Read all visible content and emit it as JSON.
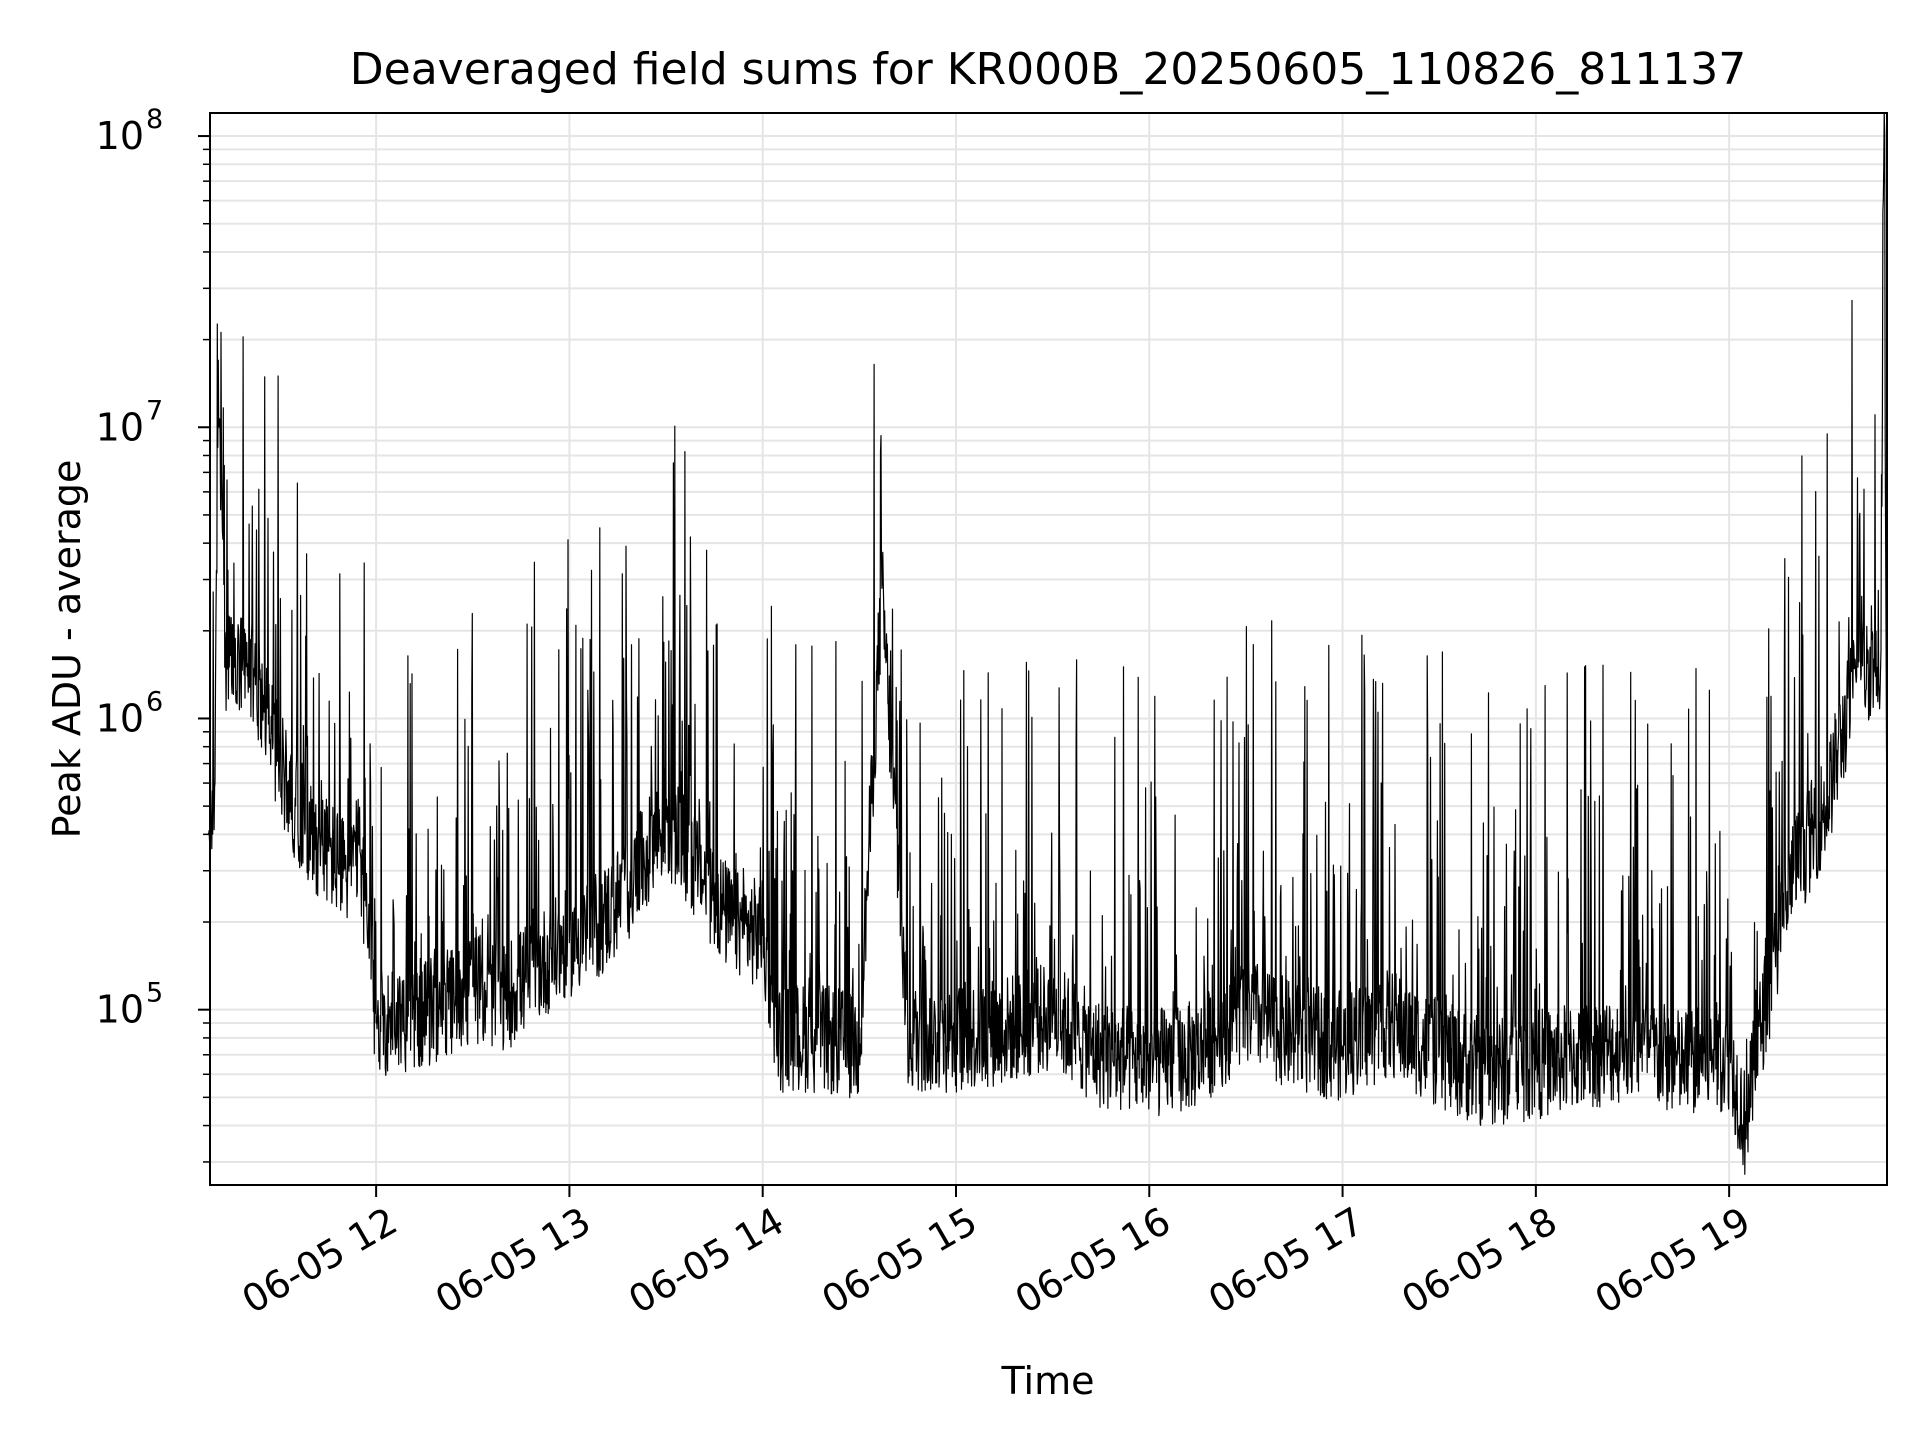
{
  "chart_data": {
    "type": "line",
    "title": "Deaveraged field sums for KR000B_20250605_110826_811137",
    "xlabel": "Time",
    "ylabel": "Peak ADU - average",
    "yscale": "log",
    "ylim": [
      25000,
      120000000
    ],
    "xlim": [
      "2025-06-05 11:08:26",
      "2025-06-05 19:49:00"
    ],
    "grid": true,
    "line_color": "#000000",
    "grid_color": "#e5e5e5",
    "x_ticks": [
      {
        "value": "2025-06-05 12:00",
        "label": "06-05 12"
      },
      {
        "value": "2025-06-05 13:00",
        "label": "06-05 13"
      },
      {
        "value": "2025-06-05 14:00",
        "label": "06-05 14"
      },
      {
        "value": "2025-06-05 15:00",
        "label": "06-05 15"
      },
      {
        "value": "2025-06-05 16:00",
        "label": "06-05 16"
      },
      {
        "value": "2025-06-05 17:00",
        "label": "06-05 17"
      },
      {
        "value": "2025-06-05 18:00",
        "label": "06-05 18"
      },
      {
        "value": "2025-06-05 19:00",
        "label": "06-05 19"
      }
    ],
    "y_ticks": [
      {
        "value": 100000,
        "base": "10",
        "exp": "5"
      },
      {
        "value": 1000000,
        "base": "10",
        "exp": "6"
      },
      {
        "value": 10000000,
        "base": "10",
        "exp": "7"
      },
      {
        "value": 100000000,
        "base": "10",
        "exp": "8"
      }
    ],
    "series": [
      {
        "x": [
          "2025-06-05 11:08",
          "2025-06-05 11:10",
          "2025-06-05 11:11",
          "2025-06-05 11:13",
          "2025-06-05 11:16",
          "2025-06-05 11:20",
          "2025-06-05 11:25",
          "2025-06-05 11:30",
          "2025-06-05 11:35",
          "2025-06-05 11:40",
          "2025-06-05 11:45",
          "2025-06-05 11:50",
          "2025-06-05 11:55",
          "2025-06-05 12:00",
          "2025-06-05 12:10",
          "2025-06-05 12:20",
          "2025-06-05 12:30",
          "2025-06-05 12:40",
          "2025-06-05 12:50",
          "2025-06-05 13:00",
          "2025-06-05 13:10",
          "2025-06-05 13:20",
          "2025-06-05 13:30",
          "2025-06-05 13:40",
          "2025-06-05 13:50",
          "2025-06-05 14:00",
          "2025-06-05 14:05",
          "2025-06-05 14:15",
          "2025-06-05 14:30",
          "2025-06-05 14:37",
          "2025-06-05 14:45",
          "2025-06-05 15:00",
          "2025-06-05 15:15",
          "2025-06-05 15:30",
          "2025-06-05 15:45",
          "2025-06-05 16:00",
          "2025-06-05 16:15",
          "2025-06-05 16:30",
          "2025-06-05 16:45",
          "2025-06-05 17:00",
          "2025-06-05 17:15",
          "2025-06-05 17:30",
          "2025-06-05 17:45",
          "2025-06-05 18:00",
          "2025-06-05 18:15",
          "2025-06-05 18:30",
          "2025-06-05 18:45",
          "2025-06-05 19:00",
          "2025-06-05 19:05",
          "2025-06-05 19:10",
          "2025-06-05 19:20",
          "2025-06-05 19:30",
          "2025-06-05 19:40",
          "2025-06-05 19:47",
          "2025-06-05 19:48",
          "2025-06-05 19:49"
        ],
        "y": [
          400000,
          600000,
          17000000,
          1500000,
          1500000,
          1400000,
          1200000,
          700000,
          500000,
          400000,
          350000,
          300000,
          350000,
          90000,
          95000,
          100000,
          120000,
          110000,
          140000,
          170000,
          200000,
          280000,
          450000,
          300000,
          200000,
          180000,
          80000,
          80000,
          75000,
          2800000,
          80000,
          80000,
          85000,
          95000,
          70000,
          65000,
          70000,
          100000,
          80000,
          75000,
          90000,
          70000,
          60000,
          65000,
          70000,
          75000,
          65000,
          70000,
          40000,
          90000,
          300000,
          500000,
          1500000,
          1500000,
          80000000,
          380000
        ]
      }
    ]
  }
}
